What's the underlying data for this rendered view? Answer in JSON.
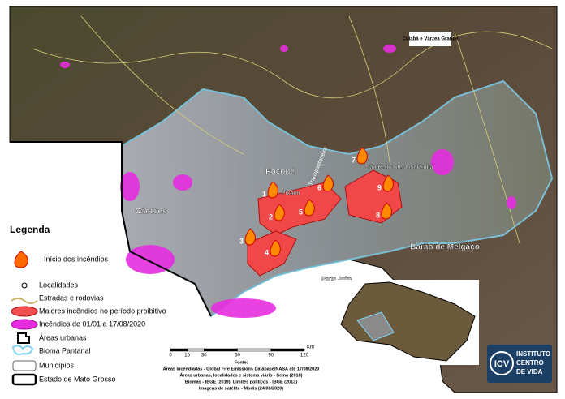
{
  "map": {
    "places": [
      "Cuiabá e Várzea Grande",
      "Poconé",
      "Transpantaneira",
      "Pixaim",
      "São Pedro de Joselândia",
      "Cáceres",
      "Barão de Melgaço",
      "Porto Jofre"
    ],
    "fires": [
      "1",
      "2",
      "3",
      "4",
      "5",
      "6",
      "7",
      "8",
      "9"
    ],
    "legend": {
      "title": "Legenda",
      "items": [
        "Início dos incêndios",
        "Localidades",
        "Estradas e rodovias",
        "Maiores incêndios no período proibitivo",
        "Incêndios de 01/01 a 17/08/2020",
        "Áreas urbanas",
        "Bioma Pantanal",
        "Municípios",
        "Estado de Mato Grosso"
      ]
    },
    "scale": {
      "ticks": [
        0,
        15,
        30,
        60,
        90,
        120
      ],
      "unit": "Km"
    },
    "source": [
      "Fonte:",
      "Áreas incendiadas - Global Fire Emissions Database/NASA até 17/08/2020",
      "Áreas urbanas, localidades e sistema viário - Sema (2018)",
      "Biomas - IBGE (2019); Limites políticos - IBGE (2013)",
      "Imagens de satélite - Modis (24/08/2020)"
    ],
    "logo": {
      "short": "ICV",
      "line1": "INSTITUTO",
      "line2": "CENTRO",
      "line3": "DE VIDA"
    }
  }
}
